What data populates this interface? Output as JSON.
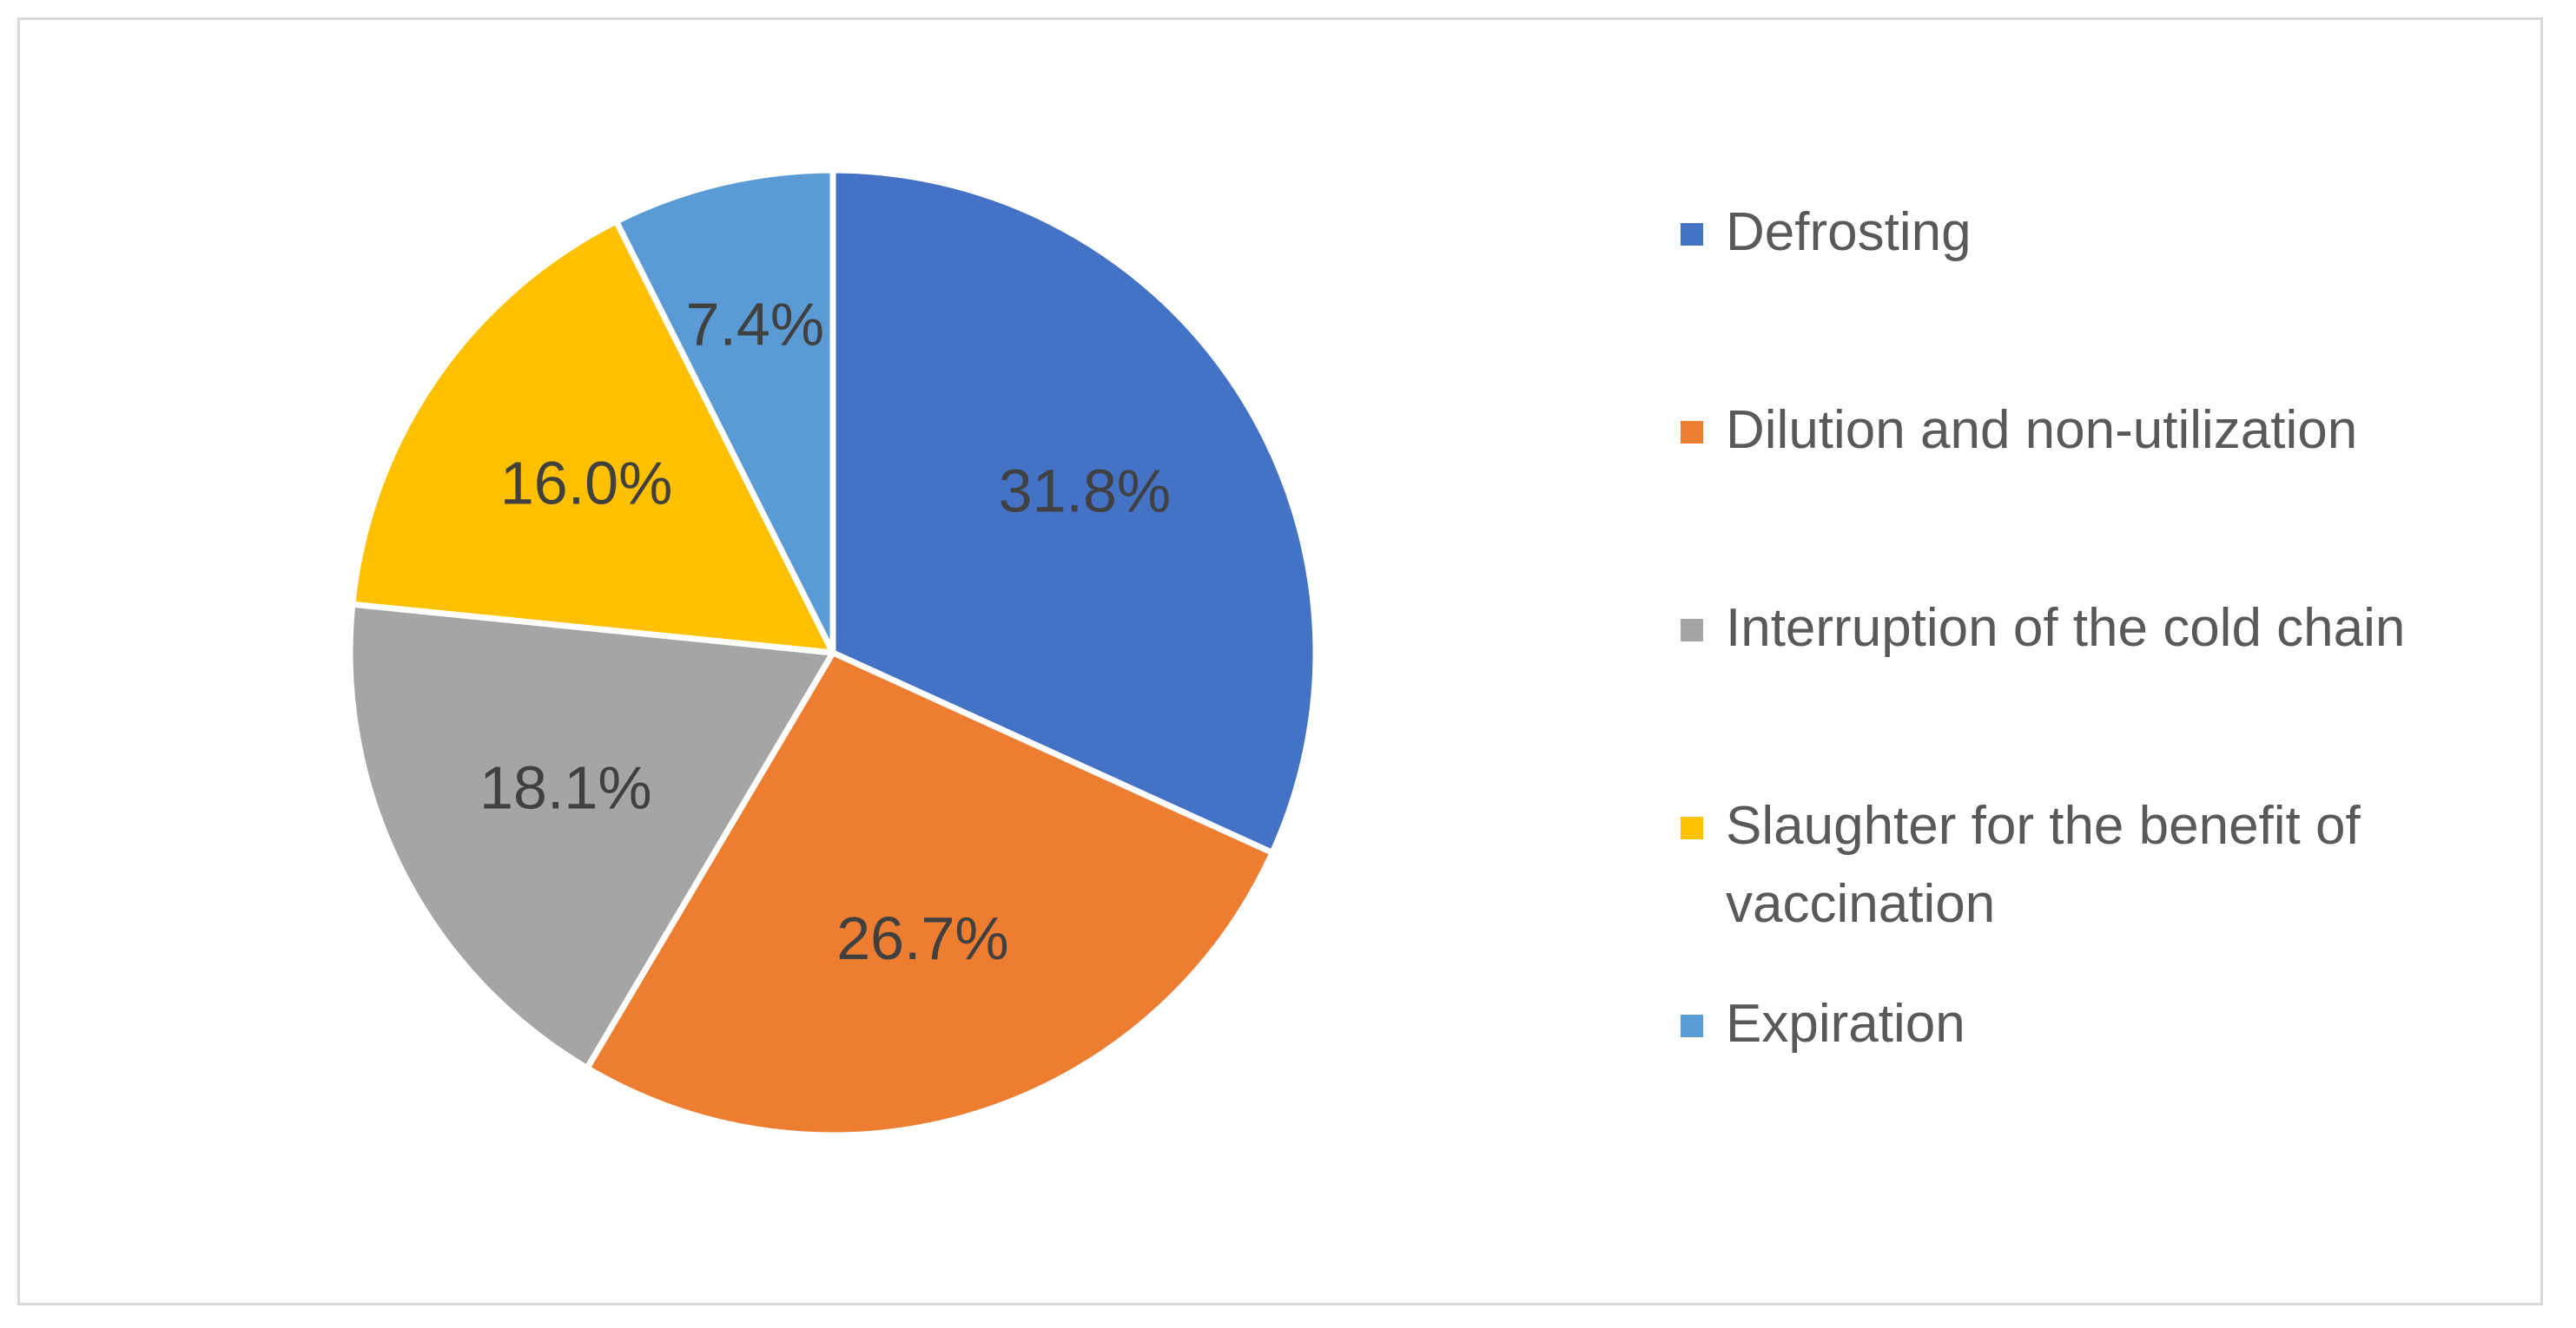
{
  "chart_data": {
    "type": "pie",
    "title": "",
    "categories": [
      "Defrosting",
      "Dilution and non-utilization",
      "Interruption of the cold chain",
      "Slaughter for the benefit of vaccination",
      "Expiration"
    ],
    "values": [
      31.8,
      26.7,
      18.1,
      16.0,
      7.4
    ],
    "labels": [
      "31.8%",
      "26.7%",
      "18.1%",
      "16.0%",
      "7.4%"
    ],
    "colors": [
      "#4472c4",
      "#ed7d31",
      "#a5a5a5",
      "#ffc000",
      "#5b9bd5"
    ],
    "legend_position": "right"
  }
}
